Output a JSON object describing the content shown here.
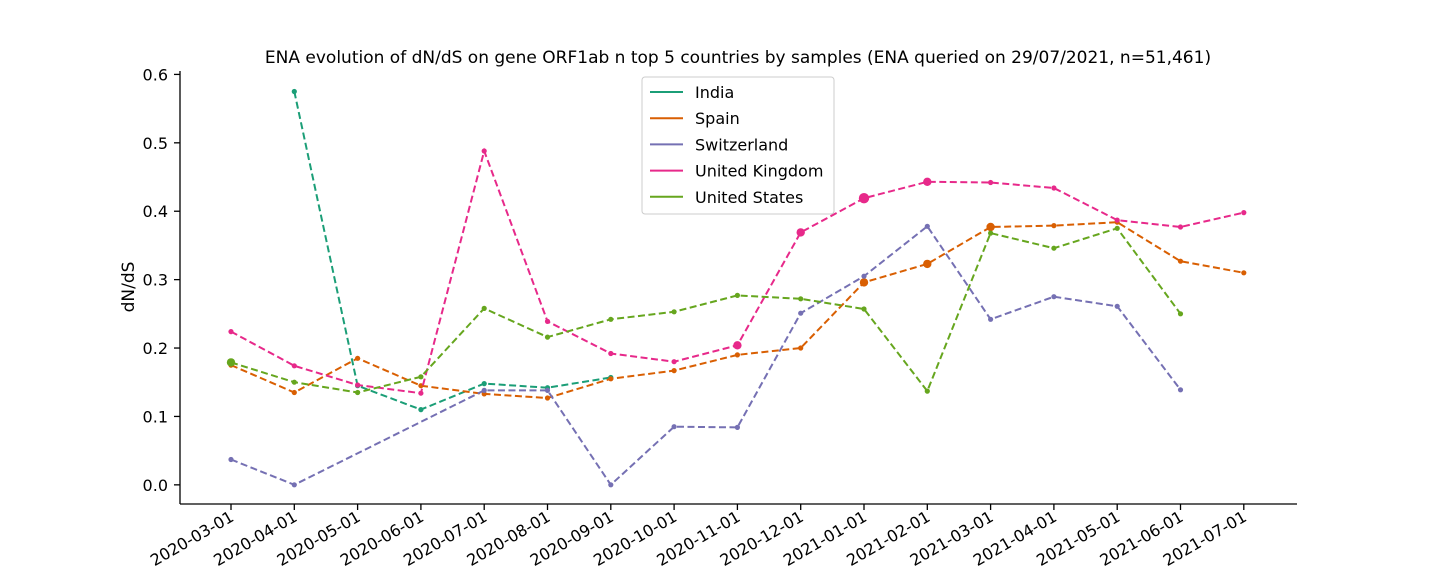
{
  "chart_data": {
    "type": "line",
    "title": "ENA evolution of dN/dS on gene ORF1ab n top 5 countries by samples (ENA queried on 29/07/2021, n=51,461)",
    "xlabel": "",
    "ylabel": "dN/dS",
    "ylim": [
      -0.028,
      0.605
    ],
    "yticks": [
      "0.0",
      "0.1",
      "0.2",
      "0.3",
      "0.4",
      "0.5",
      "0.6"
    ],
    "categories": [
      "2020-03-01",
      "2020-04-01",
      "2020-05-01",
      "2020-06-01",
      "2020-07-01",
      "2020-08-01",
      "2020-09-01",
      "2020-10-01",
      "2020-11-01",
      "2020-12-01",
      "2021-01-01",
      "2021-02-01",
      "2021-03-01",
      "2021-04-01",
      "2021-05-01",
      "2021-06-01",
      "2021-07-01"
    ],
    "legend_position": "top-center",
    "grid": false,
    "series": [
      {
        "name": "India",
        "color": "#1b9e77",
        "values": [
          null,
          0.575,
          0.145,
          0.11,
          0.148,
          0.142,
          0.157,
          null,
          null,
          null,
          null,
          null,
          null,
          null,
          null,
          null,
          null
        ],
        "sizes": [
          null,
          1,
          1,
          1,
          1,
          1,
          1,
          null,
          null,
          null,
          null,
          null,
          null,
          null,
          null,
          null,
          null
        ]
      },
      {
        "name": "Spain",
        "color": "#d95f02",
        "values": [
          0.175,
          0.135,
          0.185,
          0.145,
          0.133,
          0.127,
          0.155,
          0.167,
          0.19,
          0.2,
          0.296,
          0.323,
          0.377,
          0.379,
          0.384,
          0.327,
          0.31
        ],
        "sizes": [
          1,
          1,
          1,
          1,
          1,
          1,
          1,
          1,
          1,
          1,
          2,
          2,
          2,
          1,
          1,
          1,
          1
        ]
      },
      {
        "name": "Switzerland",
        "color": "#7570b3",
        "values": [
          0.037,
          0.0,
          null,
          null,
          0.138,
          0.138,
          0.0,
          0.085,
          0.084,
          0.251,
          0.305,
          0.378,
          0.242,
          0.275,
          0.261,
          0.139,
          null
        ],
        "sizes": [
          1,
          1,
          null,
          null,
          1,
          1,
          1,
          1,
          1,
          1,
          1,
          1,
          1,
          1,
          1,
          1,
          null
        ]
      },
      {
        "name": "United Kingdom",
        "color": "#e7298a",
        "values": [
          0.224,
          0.174,
          0.146,
          0.134,
          0.488,
          0.239,
          0.192,
          0.18,
          0.204,
          0.369,
          0.419,
          0.443,
          0.442,
          0.434,
          0.387,
          0.377,
          0.398
        ],
        "sizes": [
          1,
          1,
          1,
          1,
          1,
          1,
          1,
          1,
          2,
          2,
          3,
          2,
          1,
          1,
          1,
          1,
          1
        ]
      },
      {
        "name": "United States",
        "color": "#66a61e",
        "values": [
          0.179,
          0.15,
          0.135,
          0.158,
          0.258,
          0.216,
          0.242,
          0.253,
          0.277,
          0.272,
          0.257,
          0.137,
          0.368,
          0.346,
          0.375,
          0.25,
          null
        ],
        "sizes": [
          2,
          1,
          1,
          1,
          1,
          1,
          1,
          1,
          1,
          1,
          1,
          1,
          1,
          1,
          1,
          1,
          null
        ]
      }
    ]
  }
}
